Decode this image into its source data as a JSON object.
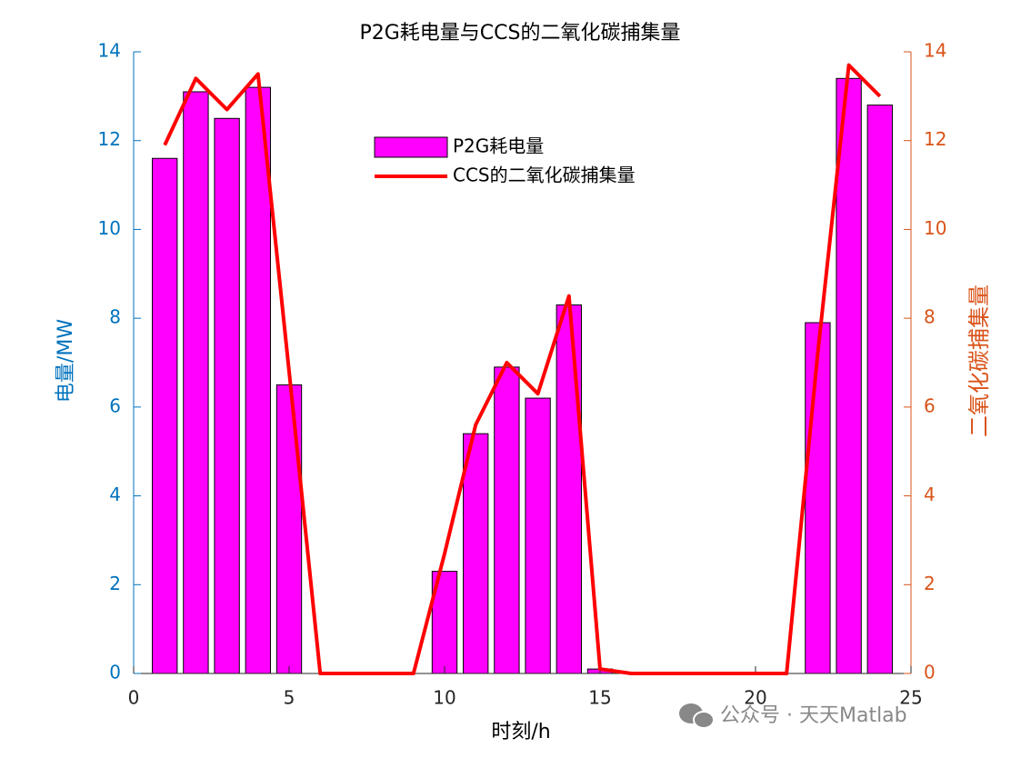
{
  "chart_data": {
    "type": "combo",
    "title": "P2G耗电量与CCS的二氧化碳捕集量",
    "xlabel": "时刻/h",
    "ylabel": "电量/MW",
    "y2label": "二氧化碳捕集量",
    "x": [
      1,
      2,
      3,
      4,
      5,
      6,
      7,
      8,
      9,
      10,
      11,
      12,
      13,
      14,
      15,
      16,
      17,
      18,
      19,
      20,
      21,
      22,
      23,
      24
    ],
    "xlim": [
      0,
      25
    ],
    "xticks": [
      0,
      5,
      10,
      15,
      20,
      25
    ],
    "ylim": [
      0,
      14
    ],
    "yticks": [
      0,
      2,
      4,
      6,
      8,
      10,
      12,
      14
    ],
    "ycolor": "#0072bd",
    "y2lim": [
      0,
      14
    ],
    "y2ticks": [
      0,
      2,
      4,
      6,
      8,
      10,
      12,
      14
    ],
    "y2color": "#d95319",
    "series": [
      {
        "name": "P2G耗电量",
        "type": "bar",
        "color": "#ff00ff",
        "edgecolor": "#000000",
        "values": [
          11.6,
          13.1,
          12.5,
          13.2,
          6.5,
          0,
          0,
          0,
          0,
          2.3,
          5.4,
          6.9,
          6.2,
          8.3,
          0.1,
          0,
          0,
          0,
          0,
          0,
          0,
          7.9,
          13.4,
          12.8
        ]
      },
      {
        "name": "CCS的二氧化碳捕集量",
        "type": "line",
        "axis": "y2",
        "color": "#ff0000",
        "values": [
          11.9,
          13.4,
          12.7,
          13.5,
          6.8,
          0,
          0,
          0,
          0,
          2.7,
          5.6,
          7.0,
          6.3,
          8.5,
          0.1,
          0,
          0,
          0,
          0,
          0,
          0,
          7.2,
          13.7,
          13.0
        ]
      }
    ],
    "legend": "upper-center",
    "watermark": "公众号 · 天天Matlab"
  }
}
